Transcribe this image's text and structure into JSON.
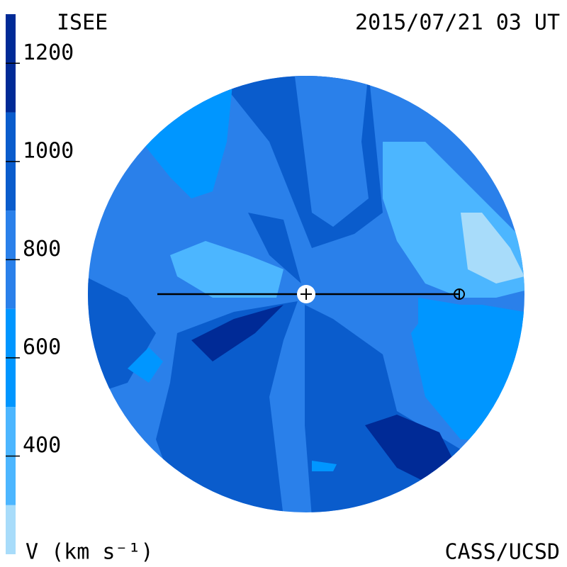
{
  "header": {
    "title": "ISEE",
    "date": "2015/07/21 03 UT"
  },
  "colorbar": {
    "label": "V (km s⁻¹)",
    "range": [
      200,
      1300
    ],
    "ticks": [
      400,
      600,
      800,
      1000,
      1200
    ],
    "levels": [
      200,
      300,
      500,
      700,
      900,
      1100,
      1300
    ],
    "colors": [
      "#a8dcfa",
      "#4cb6ff",
      "#0096ff",
      "#2a80ea",
      "#0a5ccc",
      "#002a96",
      "#000a2e"
    ]
  },
  "footer": {
    "credit": "CASS/UCSD"
  }
}
